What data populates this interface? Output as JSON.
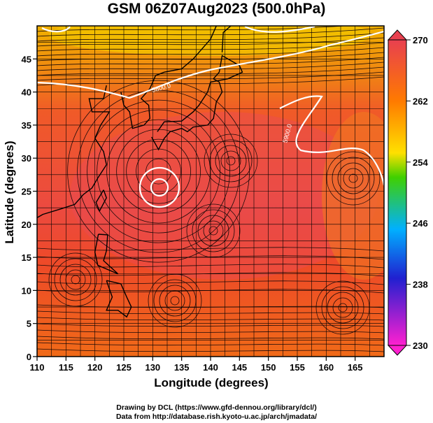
{
  "title": "GSM 06Z07Aug2023 (500.0hPa)",
  "credits": {
    "line1": "Drawing by DCL (https://www.gfd-dennou.org/library/dcl/)",
    "line2": "Data from http://database.rish.kyoto-u.ac.jp/arch/jmadata/"
  },
  "map_data": {
    "xlabel": "Longitude (degrees)",
    "ylabel": "Latitude  (degrees)",
    "xlim": [
      110,
      170
    ],
    "ylim": [
      0,
      50
    ],
    "xticks": [
      "110",
      "115",
      "120",
      "125",
      "130",
      "135",
      "140",
      "145",
      "150",
      "155",
      "160",
      "165"
    ],
    "yticks": [
      "0",
      "5",
      "10",
      "15",
      "20",
      "25",
      "30",
      "35",
      "40",
      "45"
    ],
    "grid": true,
    "contour_labels": [
      "5800.0",
      "5900.0"
    ],
    "colorbar": {
      "ticks": [
        "270",
        "262",
        "254",
        "246",
        "238",
        "230"
      ],
      "colors": [
        "#e8404f",
        "#ff7a00",
        "#ffe000",
        "#40d000",
        "#00b0ff",
        "#2020d0",
        "#ff20d0"
      ]
    },
    "typhoon_center": {
      "lon": 131,
      "lat": 28
    }
  }
}
